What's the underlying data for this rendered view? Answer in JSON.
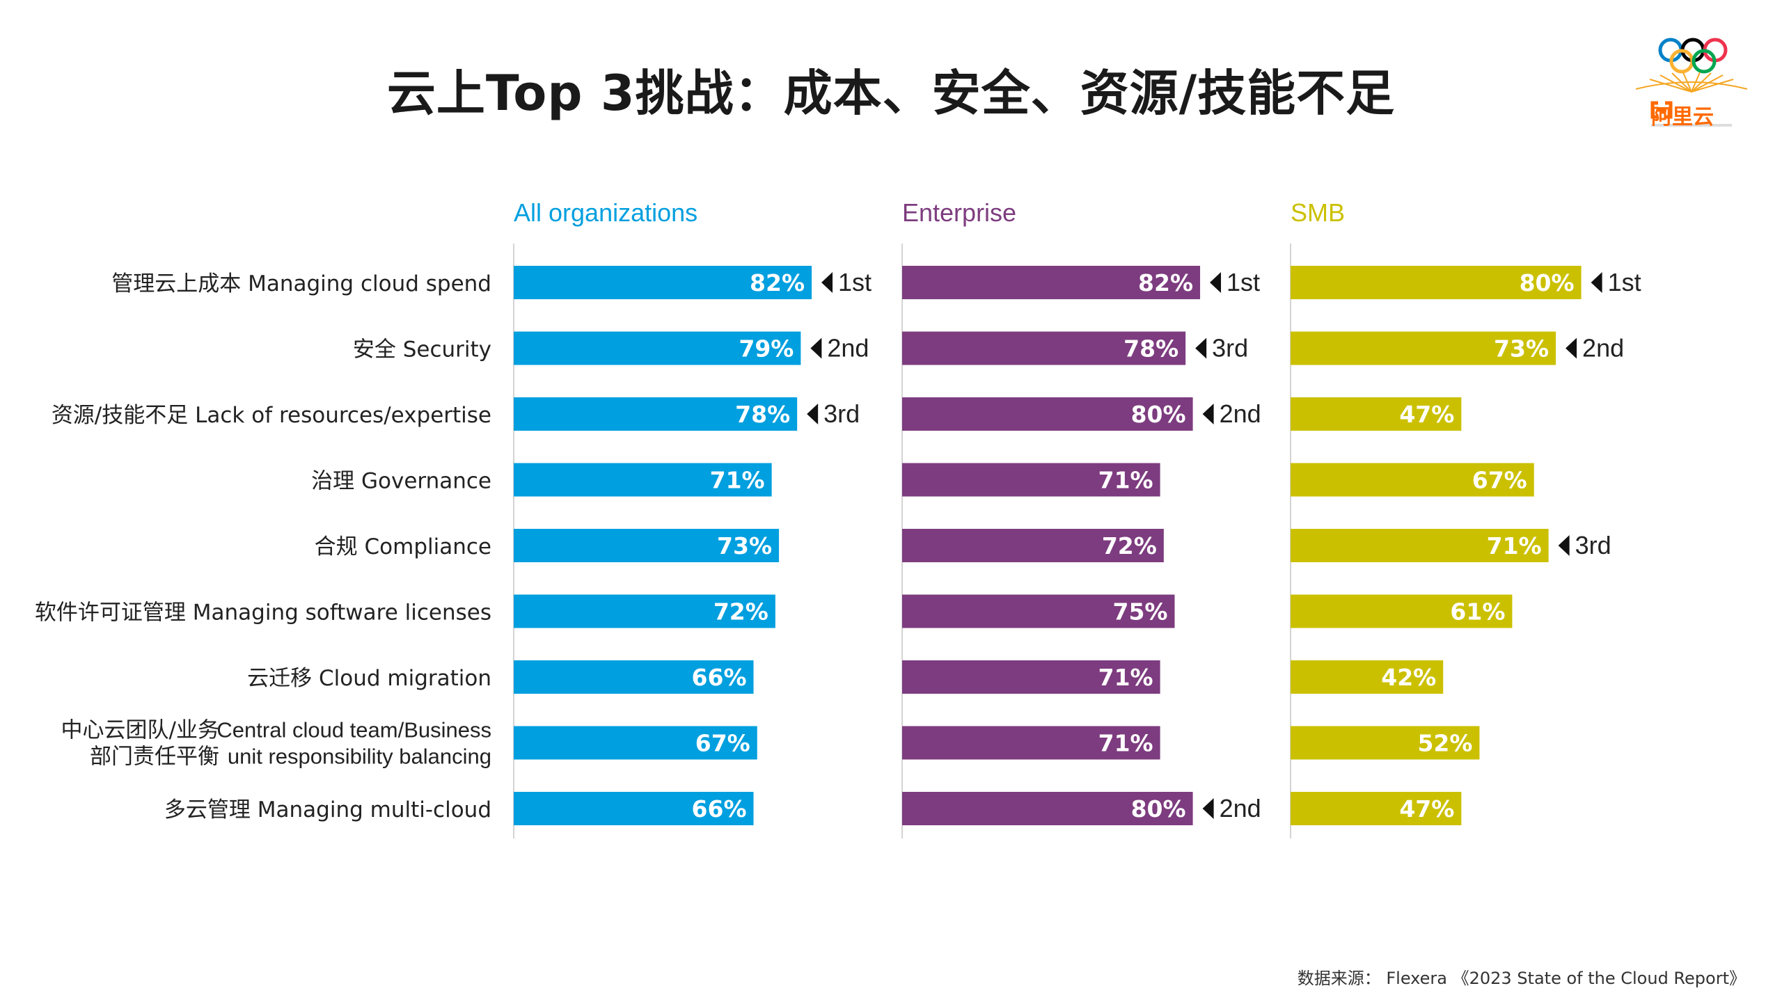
{
  "title": "云上Top 3挑战：成本、安全、资源/技能不足",
  "logo": {
    "brand_text": "阿里云",
    "ring_colors": [
      "#0081c8",
      "#000000",
      "#ee334e",
      "#fcb131",
      "#00a651"
    ],
    "brand_color": "#ff6a00"
  },
  "footer": {
    "source": "数据来源： Flexera 《2023 State of the Cloud Report》"
  },
  "chart_data": {
    "type": "bar",
    "orientation": "horizontal",
    "categories": [
      {
        "zh": "管理云上成本",
        "en": "Managing cloud spend"
      },
      {
        "zh": "安全",
        "en": "Security"
      },
      {
        "zh": "资源/技能不足",
        "en": "Lack of resources/expertise"
      },
      {
        "zh": "治理",
        "en": "Governance"
      },
      {
        "zh": "合规",
        "en": "Compliance"
      },
      {
        "zh": "软件许可证管理",
        "en": "Managing software licenses"
      },
      {
        "zh": "云迁移",
        "en": "Cloud migration"
      },
      {
        "zh": "中心云团队/业务部门责任平衡",
        "en": "Central cloud team/Business unit responsibility balancing",
        "zh_lines": [
          "中心云团队/业务",
          "部门责任平衡"
        ],
        "en_lines": [
          "Central cloud team/Business",
          "unit responsibility balancing"
        ]
      },
      {
        "zh": "多云管理",
        "en": "Managing multi-cloud"
      }
    ],
    "series": [
      {
        "name": "All organizations",
        "color": "#009fdf",
        "values": [
          82,
          79,
          78,
          71,
          73,
          72,
          66,
          67,
          66
        ],
        "value_labels": [
          "82%",
          "79%",
          "78%",
          "71%",
          "73%",
          "72%",
          "66%",
          "67%",
          "66%"
        ],
        "ranks": [
          "1st",
          "2nd",
          "3rd",
          "",
          "",
          "",
          "",
          "",
          ""
        ]
      },
      {
        "name": "Enterprise",
        "color": "#7d3c7f",
        "values": [
          82,
          78,
          80,
          71,
          72,
          75,
          71,
          71,
          80
        ],
        "value_labels": [
          "82%",
          "78%",
          "80%",
          "71%",
          "72%",
          "75%",
          "71%",
          "71%",
          "80%"
        ],
        "ranks": [
          "1st",
          "3rd",
          "2nd",
          "",
          "",
          "",
          "",
          "",
          "2nd"
        ]
      },
      {
        "name": "SMB",
        "color": "#cbc000",
        "values": [
          80,
          73,
          47,
          67,
          71,
          61,
          42,
          52,
          47
        ],
        "value_labels": [
          "80%",
          "73%",
          "47%",
          "67%",
          "71%",
          "61%",
          "42%",
          "52%",
          "47%"
        ],
        "ranks": [
          "1st",
          "2nd",
          "",
          "",
          "3rd",
          "",
          "",
          "",
          ""
        ]
      }
    ],
    "xlim": [
      0,
      100
    ],
    "grid": false,
    "legend": "none"
  }
}
